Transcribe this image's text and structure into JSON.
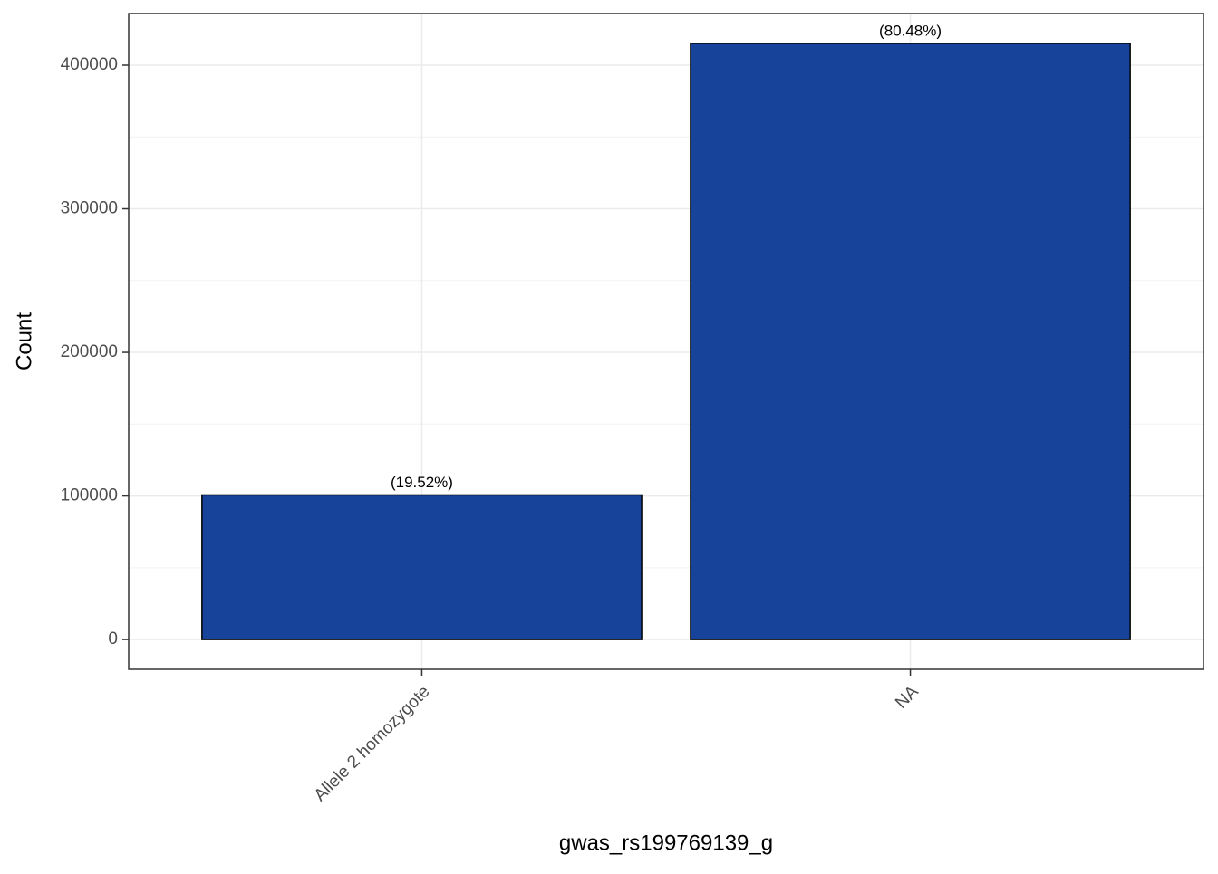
{
  "chart_data": {
    "type": "bar",
    "x_label": "gwas_rs199769139_g",
    "y_label": "Count",
    "categories": [
      "Allele 2 homozygote",
      "NA"
    ],
    "values": [
      100700,
      415200
    ],
    "bar_labels": [
      "(19.52%)",
      "(80.48%)"
    ],
    "color": "#18439a",
    "ylim": [
      -20760,
      435960
    ],
    "yticks": [
      0,
      100000,
      200000,
      300000,
      400000
    ],
    "minor_yticks": [
      50000,
      150000,
      250000,
      350000
    ],
    "grid": true
  }
}
